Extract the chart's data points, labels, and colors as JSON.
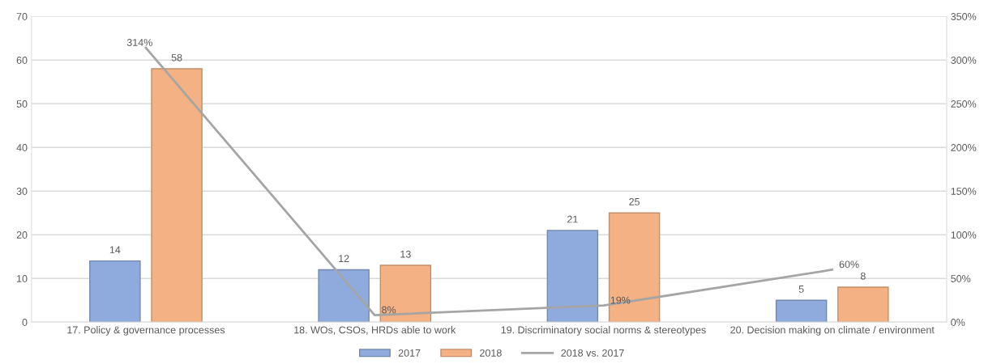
{
  "chart_data": {
    "type": "bar",
    "categories": [
      "17. Policy & governance processes",
      "18. WOs, CSOs, HRDs able to work",
      "19. Discriminatory social norms & stereotypes",
      "20. Decision making on climate / environment"
    ],
    "series": [
      {
        "name": "2017",
        "color": "#8faadc",
        "values": [
          14,
          12,
          21,
          5
        ]
      },
      {
        "name": "2018",
        "color": "#f4b183",
        "values": [
          58,
          13,
          25,
          8
        ]
      },
      {
        "name": "2018 vs. 2017",
        "type": "line",
        "axis": "y2",
        "color": "#a5a5a5",
        "values": [
          314,
          8,
          19,
          60
        ],
        "value_labels": [
          "314%",
          "8%",
          "19%",
          "60%"
        ]
      }
    ],
    "data_labels": true,
    "ylim": [
      0,
      70
    ],
    "yticks": [
      0,
      10,
      20,
      30,
      40,
      50,
      60,
      70
    ],
    "y2lim": [
      0,
      350
    ],
    "y2ticks": [
      {
        "value": 0,
        "label": "0%"
      },
      {
        "value": 50,
        "label": "50%"
      },
      {
        "value": 100,
        "label": "100%"
      },
      {
        "value": 150,
        "label": "150%"
      },
      {
        "value": 200,
        "label": "200%"
      },
      {
        "value": 250,
        "label": "250%"
      },
      {
        "value": 300,
        "label": "300%"
      },
      {
        "value": 350,
        "label": "350%"
      }
    ],
    "grid": "y",
    "legend": "bottom",
    "marker": "none",
    "line_style": "solid"
  }
}
